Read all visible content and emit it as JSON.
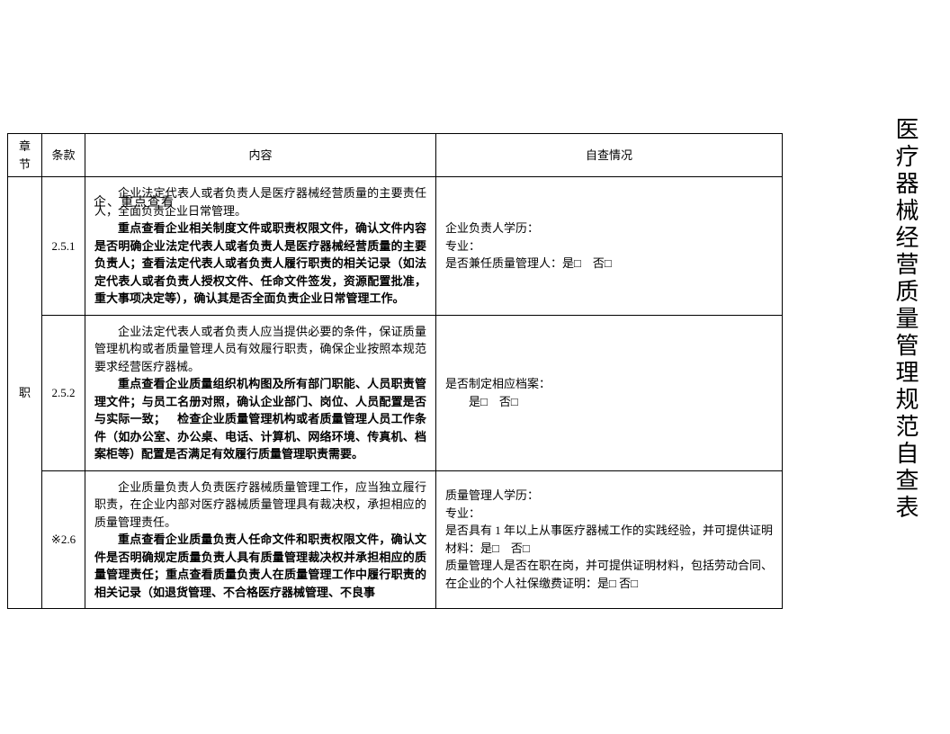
{
  "title": "医疗器械经营质量管理规范自查表",
  "overlay": "企、重点查看",
  "headers": {
    "chapter": "章节",
    "clause": "条款",
    "content": "内容",
    "check": "自查情况"
  },
  "chapter_label": "职",
  "rows": [
    {
      "clause": "2.5.1",
      "content_p1": "企业法定代表人或者负责人是医疗器械经营质量的主要责任人，全面负责企业日常管理。",
      "content_p2": "重点查看企业相关制度文件或职责权限文件，确认文件内容是否明确企业法定代表人或者负责人是医疗器械经营质量的主要负责人；查看法定代表人或者负责人履行职责的相关记录（如法定代表人或者负责人授权文件、任命文件签发，资源配置批准，重大事项决定等），确认其是否全面负责企业日常管理工作。",
      "check_l1": "企业负责人学历：",
      "check_l2": "专业：",
      "check_l3": "是否兼任质量管理人：是□ 否□"
    },
    {
      "clause": "2.5.2",
      "content_p1": "企业法定代表人或者负责人应当提供必要的条件，保证质量管理机构或者质量管理人员有效履行职责，确保企业按照本规范要求经营医疗器械。",
      "content_p2": "重点查看企业质量组织机构图及所有部门职能、人员职责管理文件；与员工名册对照，确认企业部门、岗位、人员配置是否与实际一致； 检查企业质量管理机构或者质量管理人员工作条件（如办公室、办公桌、电话、计算机、网络环境、传真机、档案柜等）配置是否满足有效履行质量管理职责需要。",
      "check_l1": "是否制定相应档案：",
      "check_l2": "是□ 否□"
    },
    {
      "clause": "※2.6",
      "content_p1": "企业质量负责人负责医疗器械质量管理工作，应当独立履行职责，在企业内部对医疗器械质量管理具有裁决权，承担相应的质量管理责任。",
      "content_p2": "重点查看企业质量负责人任命文件和职责权限文件，确认文件是否明确规定质量负责人具有质量管理裁决权并承担相应的质量管理责任；重点查看质量负责人在质量管理工作中履行职责的相关记录（如退货管理、不合格医疗器械管理、不良事",
      "check_l1": "质量管理人学历：",
      "check_l2": "专业：",
      "check_l3": "是否具有 1 年以上从事医疗器械工作的实践经验，并可提供证明材料：是□ 否□",
      "check_l4": "质量管理人是否在职在岗，并可提供证明材料，包括劳动合同、在企业的个人社保缴费证明：是□ 否□"
    }
  ]
}
